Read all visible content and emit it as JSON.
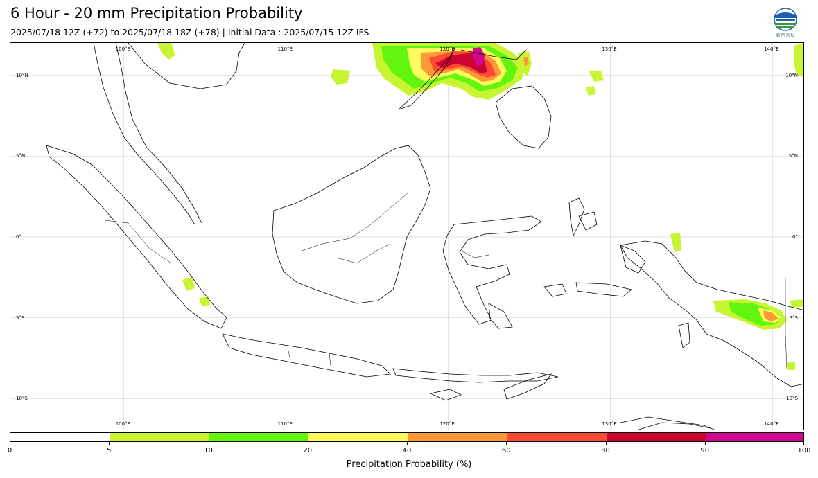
{
  "header": {
    "title": "6 Hour - 20 mm Precipitation Probability",
    "subtitle": "2025/07/18 12Z (+72) to 2025/07/18 18Z (+78) | Initial Data : 2025/07/15 12Z IFS",
    "logo_text": "BMKG"
  },
  "map": {
    "projection": "PlateCarree",
    "lon_range": [
      93,
      142
    ],
    "lat_range": [
      -12,
      12
    ],
    "grid": true,
    "lon_ticks": [
      {
        "value": 100,
        "label": "100°E"
      },
      {
        "value": 110,
        "label": "110°E"
      },
      {
        "value": 120,
        "label": "120°E"
      },
      {
        "value": 130,
        "label": "130°E"
      },
      {
        "value": 140,
        "label": "140°E"
      }
    ],
    "lat_ticks": [
      {
        "value": 10,
        "label": "10°N"
      },
      {
        "value": 5,
        "label": "5°N"
      },
      {
        "value": 0,
        "label": "0°"
      },
      {
        "value": -5,
        "label": "5°S"
      },
      {
        "value": -10,
        "label": "10°S"
      }
    ]
  },
  "colorbar": {
    "title": "Precipitation Probability (%)",
    "ticks": [
      "0",
      "5",
      "10",
      "20",
      "40",
      "60",
      "80",
      "90",
      "100"
    ],
    "colors": [
      "#ffffff",
      "#c8f532",
      "#62f50f",
      "#fdfb5e",
      "#fd9a37",
      "#fd4b33",
      "#cc0230",
      "#cf0890"
    ]
  }
}
